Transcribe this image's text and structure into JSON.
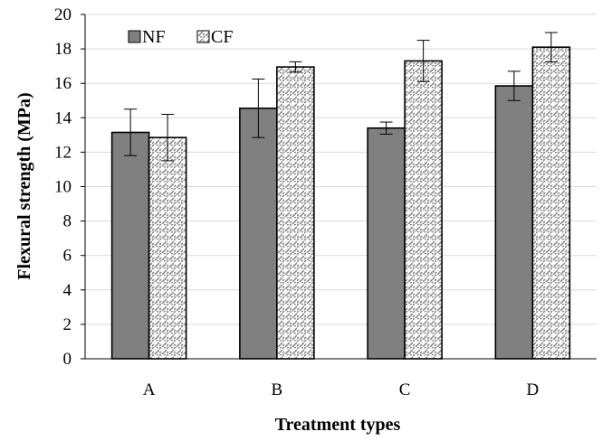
{
  "chart_data": {
    "type": "bar",
    "categories": [
      "A",
      "B",
      "C",
      "D"
    ],
    "series": [
      {
        "name": "NF",
        "values": [
          13.15,
          14.55,
          13.4,
          15.85
        ],
        "errors": [
          1.35,
          1.7,
          0.35,
          0.85
        ],
        "color": "#808080",
        "pattern": "solid"
      },
      {
        "name": "CF",
        "values": [
          12.85,
          16.95,
          17.3,
          18.1
        ],
        "errors": [
          1.35,
          0.3,
          1.2,
          0.85
        ],
        "color": "#ffffff",
        "pattern": "speckled"
      }
    ],
    "title": "",
    "xlabel": "Treatment types",
    "ylabel": "Flexural strength (MPa)",
    "ylim": [
      0,
      20
    ],
    "yticks": [
      "0",
      "2",
      "4",
      "6",
      "8",
      "10",
      "12",
      "14",
      "16",
      "18",
      "20"
    ],
    "grid": true,
    "legend_position": "top-left"
  }
}
